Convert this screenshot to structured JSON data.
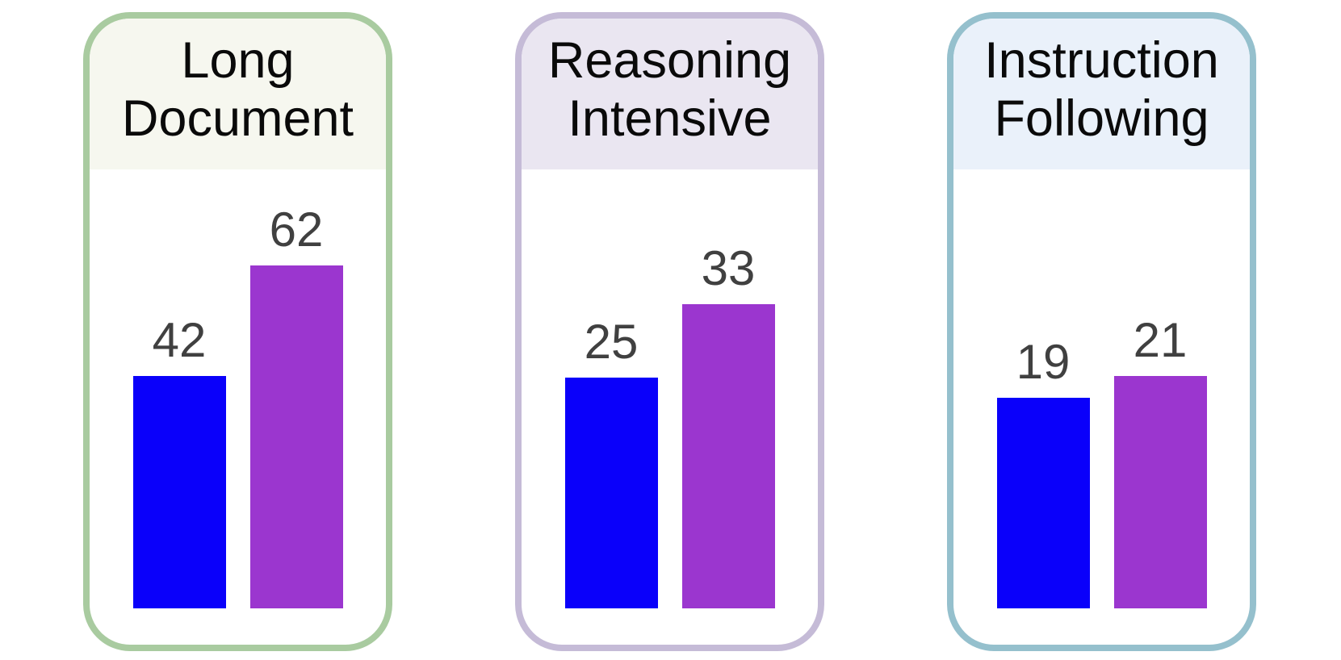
{
  "figure": {
    "value_label_color": "#404040",
    "title_text_color": "#0a0a0a",
    "background": "#ffffff"
  },
  "chart_data": [
    {
      "type": "bar",
      "title": "Long Document",
      "values": [
        42,
        62
      ],
      "bar_colors": [
        "#0a00fa",
        "#9b36cf"
      ],
      "ylim": [
        0,
        70
      ],
      "grid": false,
      "legend": "none",
      "value_labels": "above-bars",
      "card_border_color": "#a9cba0",
      "header_bg_color": "#f6f7ef"
    },
    {
      "type": "bar",
      "title": "Reasoning Intensive",
      "values": [
        25,
        33
      ],
      "bar_colors": [
        "#0a00fa",
        "#9b36cf"
      ],
      "ylim": [
        0,
        42
      ],
      "grid": false,
      "legend": "none",
      "value_labels": "above-bars",
      "card_border_color": "#c5bbd7",
      "header_bg_color": "#eae6f1"
    },
    {
      "type": "bar",
      "title": "Instruction Following",
      "values": [
        19,
        21
      ],
      "bar_colors": [
        "#0a00fa",
        "#9b36cf"
      ],
      "ylim": [
        0,
        35
      ],
      "grid": false,
      "legend": "none",
      "value_labels": "above-bars",
      "card_border_color": "#95c0cd",
      "header_bg_color": "#eaf1fa"
    }
  ]
}
